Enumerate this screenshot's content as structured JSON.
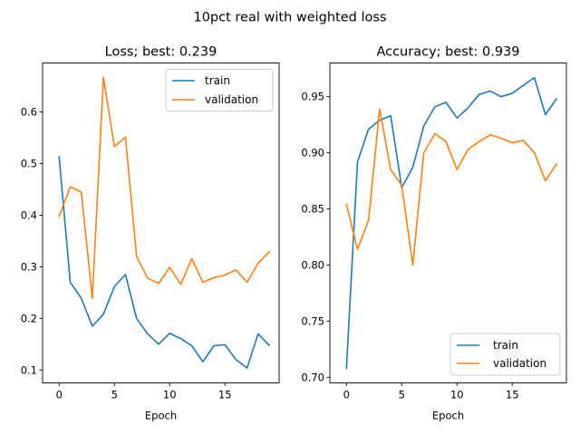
{
  "figure_title": "10pct real with weighted loss",
  "colors": {
    "train": "#1f77b4",
    "validation": "#ff7f0e"
  },
  "chart_data": [
    {
      "type": "line",
      "title": "Loss; best: 0.239",
      "xlabel": "Epoch",
      "ylabel": "",
      "x": [
        0,
        1,
        2,
        3,
        4,
        5,
        6,
        7,
        8,
        9,
        10,
        11,
        12,
        13,
        14,
        15,
        16,
        17,
        18,
        19
      ],
      "xlim": [
        -1.5,
        19.9
      ],
      "ylim": [
        0.075,
        0.695
      ],
      "xticks": [
        "0",
        "5",
        "10",
        "15"
      ],
      "yticks": [
        "0.1",
        "0.2",
        "0.3",
        "0.4",
        "0.5",
        "0.6"
      ],
      "legend_position": "top-right",
      "series": [
        {
          "name": "train",
          "values": [
            0.513,
            0.27,
            0.239,
            0.185,
            0.208,
            0.262,
            0.285,
            0.2,
            0.17,
            0.15,
            0.171,
            0.161,
            0.147,
            0.116,
            0.147,
            0.149,
            0.12,
            0.104,
            0.17,
            0.148
          ]
        },
        {
          "name": "validation",
          "values": [
            0.398,
            0.455,
            0.445,
            0.239,
            0.667,
            0.533,
            0.551,
            0.32,
            0.278,
            0.268,
            0.299,
            0.266,
            0.316,
            0.27,
            0.279,
            0.284,
            0.294,
            0.27,
            0.307,
            0.329
          ]
        }
      ]
    },
    {
      "type": "line",
      "title": "Accuracy; best: 0.939",
      "xlabel": "Epoch",
      "ylabel": "",
      "x": [
        0,
        1,
        2,
        3,
        4,
        5,
        6,
        7,
        8,
        9,
        10,
        11,
        12,
        13,
        14,
        15,
        16,
        17,
        18,
        19
      ],
      "xlim": [
        -1.5,
        19.9
      ],
      "ylim": [
        0.695,
        0.98
      ],
      "xticks": [
        "0",
        "5",
        "10",
        "15"
      ],
      "yticks": [
        "0.70",
        "0.75",
        "0.80",
        "0.85",
        "0.90",
        "0.95"
      ],
      "legend_position": "bottom-right",
      "series": [
        {
          "name": "train",
          "values": [
            0.708,
            0.892,
            0.921,
            0.929,
            0.933,
            0.869,
            0.887,
            0.924,
            0.941,
            0.945,
            0.931,
            0.94,
            0.952,
            0.955,
            0.95,
            0.953,
            0.96,
            0.967,
            0.934,
            0.948
          ]
        },
        {
          "name": "validation",
          "values": [
            0.854,
            0.814,
            0.84,
            0.939,
            0.885,
            0.871,
            0.8,
            0.9,
            0.917,
            0.91,
            0.885,
            0.903,
            0.91,
            0.916,
            0.913,
            0.909,
            0.911,
            0.9,
            0.875,
            0.89
          ]
        }
      ]
    }
  ]
}
